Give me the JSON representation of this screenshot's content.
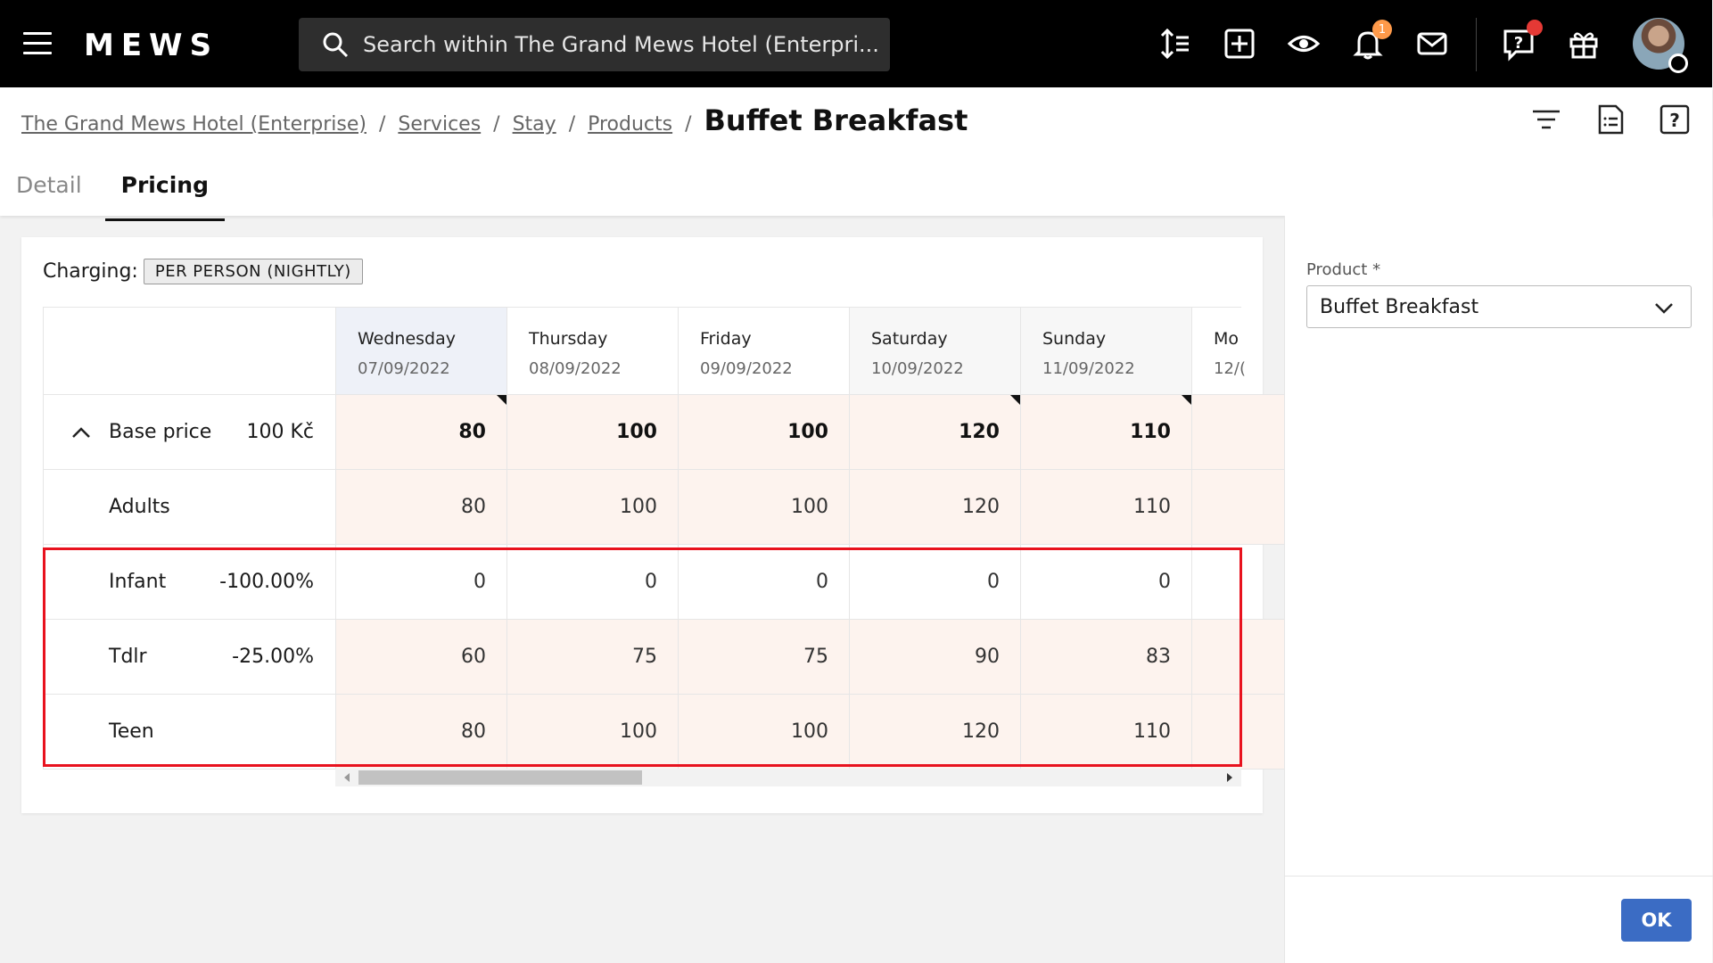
{
  "topbar": {
    "logo": "MEWS",
    "search_placeholder": "Search within The Grand Mews Hotel (Enterpri...",
    "notification_count": "1"
  },
  "breadcrumb": {
    "items": [
      "The Grand Mews Hotel (Enterprise)",
      "Services",
      "Stay",
      "Products"
    ],
    "current": "Buffet Breakfast"
  },
  "tabs": [
    {
      "label": "Detail",
      "active": false
    },
    {
      "label": "Pricing",
      "active": true
    }
  ],
  "pricing": {
    "charging_label": "Charging:",
    "charging_value": "PER PERSON (NIGHTLY)",
    "days": [
      {
        "day": "Wednesday",
        "date": "07/09/2022",
        "highlighted": true
      },
      {
        "day": "Thursday",
        "date": "08/09/2022",
        "highlighted": false
      },
      {
        "day": "Friday",
        "date": "09/09/2022",
        "highlighted": false
      },
      {
        "day": "Saturday",
        "date": "10/09/2022",
        "highlighted": true
      },
      {
        "day": "Sunday",
        "date": "11/09/2022",
        "highlighted": true
      },
      {
        "day": "Mo",
        "date": "12/(",
        "highlighted": false
      }
    ],
    "rows": [
      {
        "name": "Base price",
        "value": "100 Kč",
        "cells": [
          "80",
          "100",
          "100",
          "120",
          "110",
          ""
        ],
        "bold": true,
        "collapsible": true
      },
      {
        "name": "Adults",
        "value": "",
        "cells": [
          "80",
          "100",
          "100",
          "120",
          "110",
          ""
        ],
        "bold": false,
        "collapsible": false
      },
      {
        "name": "Infant",
        "value": "-100.00%",
        "cells": [
          "0",
          "0",
          "0",
          "0",
          "0",
          ""
        ],
        "bold": false,
        "collapsible": false
      },
      {
        "name": "Tdlr",
        "value": "-25.00%",
        "cells": [
          "60",
          "75",
          "75",
          "90",
          "83",
          ""
        ],
        "bold": false,
        "collapsible": false
      },
      {
        "name": "Teen",
        "value": "",
        "cells": [
          "80",
          "100",
          "100",
          "120",
          "110",
          ""
        ],
        "bold": false,
        "collapsible": false
      }
    ]
  },
  "right_panel": {
    "product_label": "Product *",
    "product_value": "Buffet Breakfast",
    "ok_label": "OK"
  },
  "colors": {
    "accent": "#3b6cc4",
    "highlight_border": "#e8121e",
    "cell_tint": "#fdf3ee",
    "header_tint": "#eef1f8"
  }
}
